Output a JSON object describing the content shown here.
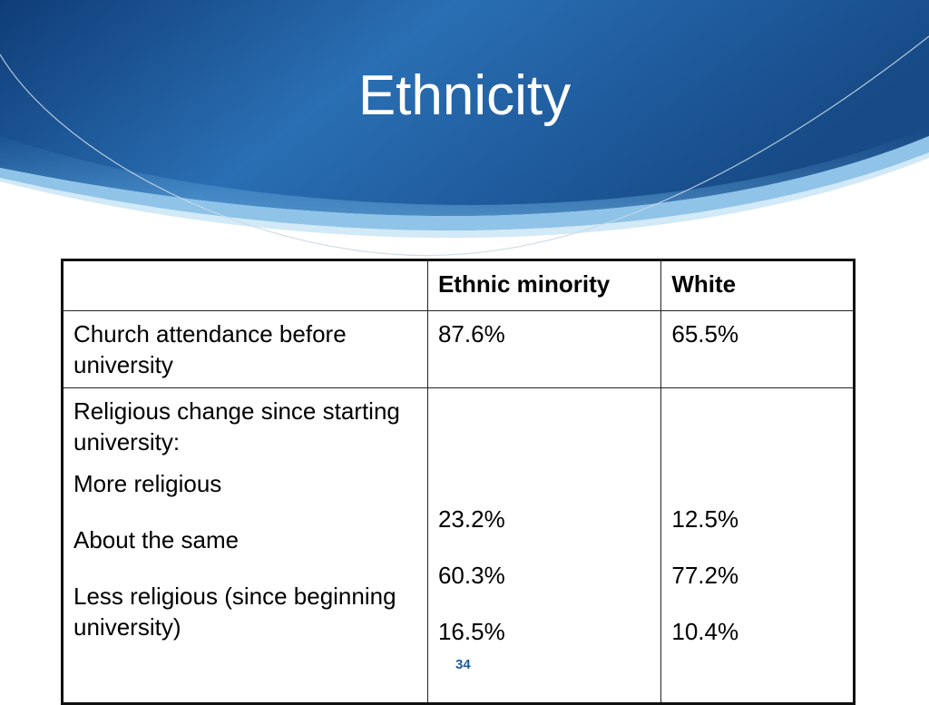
{
  "slide": {
    "title": "Ethnicity",
    "page_number": "34"
  },
  "table": {
    "headers": [
      "",
      "Ethnic minority",
      "White"
    ],
    "row1": {
      "label": "Church attendance before university",
      "ethnic_minority": "87.6%",
      "white": "65.5%"
    },
    "row2": {
      "label": "Religious change since starting university:",
      "items": [
        {
          "label": "More religious",
          "ethnic_minority": "23.2%",
          "white": "12.5%"
        },
        {
          "label": "About the same",
          "ethnic_minority": "60.3%",
          "white": "77.2%"
        },
        {
          "label": "Less religious (since beginning university)",
          "ethnic_minority": "16.5%",
          "white": "10.4%"
        }
      ]
    }
  },
  "colors": {
    "banner_dark": "#0f3d78",
    "banner_mid": "#2b6eb0",
    "banner_light": "#8fc3e8",
    "title_text": "#ffffff"
  }
}
